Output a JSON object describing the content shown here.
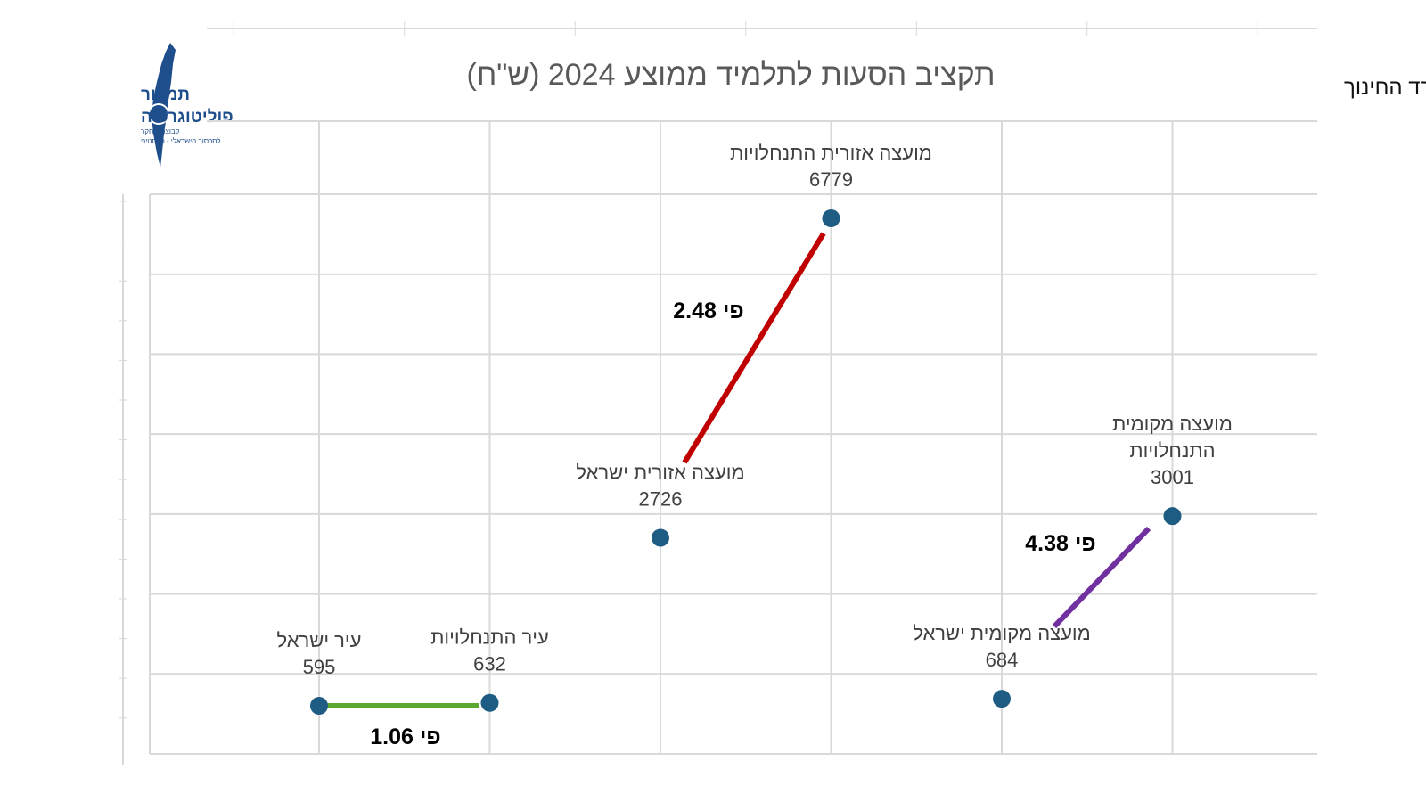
{
  "title": "תקציב הסעות לתלמיד ממוצע 2024 (ש\"ח)",
  "source": "מקור: משרד החינוך",
  "logo": {
    "line1": "תמרור",
    "line2": "פוליטוגרפיה",
    "line3": "קבוצת מחקר",
    "line4": "לסכסוך הישראלי - פלסטיני"
  },
  "colors": {
    "point": "#1f5c84",
    "green": "#5aa832",
    "red": "#c00000",
    "purple": "#7030a0",
    "grid": "#d9d9d9"
  },
  "chart_data": {
    "type": "scatter",
    "title": "תקציב הסעות לתלמיד ממוצע 2024 (ש\"ח)",
    "grid": true,
    "points": [
      {
        "id": "ir-israel",
        "name": "עיר ישראל",
        "x": 1,
        "y": 595
      },
      {
        "id": "ir-hitnachluyot",
        "name": "עיר התנחלויות",
        "x": 2,
        "y": 632
      },
      {
        "id": "ezorit-israel",
        "name": "מועצה אזורית ישראל",
        "x": 3,
        "y": 2726
      },
      {
        "id": "ezorit-hitnachluyot",
        "name": "מועצה אזורית התנחלויות",
        "x": 4,
        "y": 6779
      },
      {
        "id": "mekomit-israel",
        "name": "מועצה מקומית ישראל",
        "x": 5,
        "y": 684
      },
      {
        "id": "mekomit-hitnachluyot",
        "name": "מועצה מקומית התנחלויות",
        "x": 6,
        "y": 3001
      }
    ],
    "comparisons": [
      {
        "from": "ir-israel",
        "to": "ir-hitnachluyot",
        "label": "פי 1.06",
        "color": "#5aa832"
      },
      {
        "from": "ezorit-israel",
        "to": "ezorit-hitnachluyot",
        "label": "פי 2.48",
        "color": "#c00000"
      },
      {
        "from": "mekomit-israel",
        "to": "mekomit-hitnachluyot",
        "label": "פי 4.38",
        "color": "#7030a0"
      }
    ]
  }
}
